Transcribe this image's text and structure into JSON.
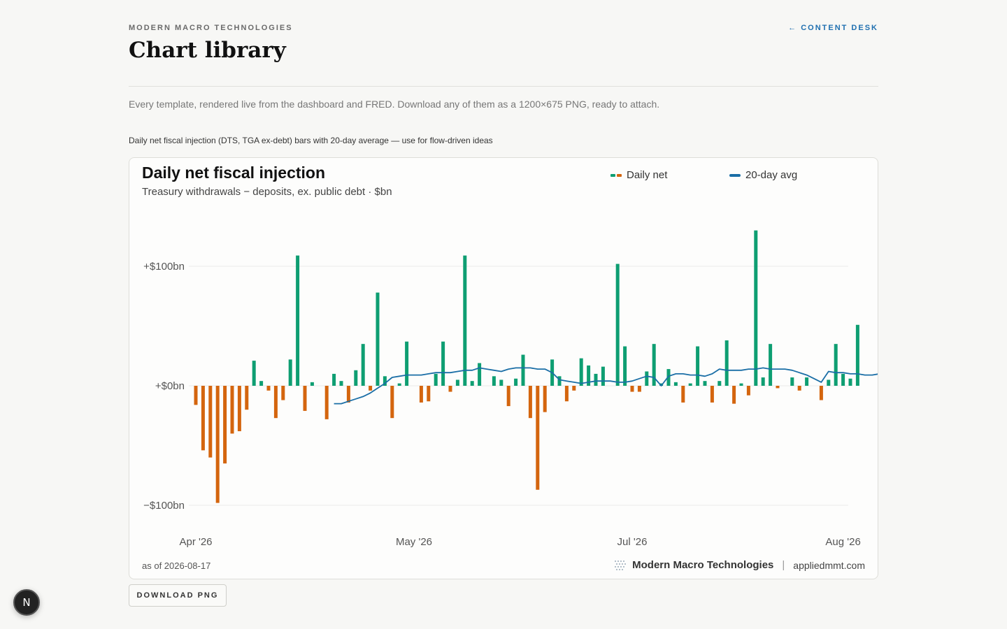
{
  "header": {
    "eyebrow": "MODERN MACRO TECHNOLOGIES",
    "title": "Chart library",
    "back_link": "← CONTENT DESK"
  },
  "intro": "Every template, rendered live from the dashboard and FRED. Download any of them as a 1200×675 PNG, ready to attach.",
  "chart_caption": "Daily net fiscal injection (DTS, TGA ex-debt) bars with 20-day average — use for flow-driven ideas",
  "card": {
    "as_of": "as of 2026-08-17",
    "brand_name": "Modern Macro Technologies",
    "brand_sep": "|",
    "brand_url": "appliedmmt.com"
  },
  "download_button": "DOWNLOAD PNG",
  "fab_label": "N",
  "colors": {
    "positive": "#0e9e72",
    "negative": "#d4650e",
    "avg_line": "#1a6ea6",
    "link": "#1f6fb0"
  },
  "chart_data": {
    "type": "bar",
    "title": "Daily net fiscal injection",
    "subtitle": "Treasury withdrawals − deposits, ex. public debt · $bn",
    "legend": [
      {
        "name": "Daily net",
        "style": "bars"
      },
      {
        "name": "20-day avg",
        "style": "line"
      }
    ],
    "y_ticks": [
      "+$100bn",
      "+$0bn",
      "−$100bn"
    ],
    "y_tick_values": [
      100,
      0,
      -100
    ],
    "ylim": [
      -105,
      130
    ],
    "x_ticks": [
      "Apr '26",
      "May '26",
      "Jul '26",
      "Aug '26"
    ],
    "x_tick_index": [
      0,
      30,
      60,
      89
    ],
    "grid": true,
    "series": [
      {
        "name": "Daily net",
        "values": [
          -16,
          -54,
          -60,
          -98,
          -65,
          -40,
          -38,
          -20,
          21,
          4,
          -4,
          -27,
          -12,
          22,
          109,
          -21,
          3,
          0,
          -28,
          10,
          4,
          -14,
          13,
          35,
          -4,
          78,
          8,
          -27,
          2,
          37,
          0,
          -14,
          -13,
          10,
          37,
          -5,
          5,
          109,
          4,
          19,
          0,
          8,
          5,
          -17,
          6,
          26,
          -27,
          -87,
          -22,
          22,
          8,
          -13,
          -4,
          23,
          17,
          10,
          16,
          0,
          102,
          33,
          -5,
          -5,
          12,
          35,
          2,
          14,
          3,
          -14,
          2,
          33,
          4,
          -14,
          4,
          38,
          -15,
          2,
          -8,
          130,
          7,
          35,
          -2,
          0,
          7,
          -4,
          7,
          0,
          -12,
          5,
          35,
          10,
          6,
          51
        ]
      },
      {
        "name": "20-day avg",
        "start_index": 19,
        "values": [
          -15,
          -15,
          -13,
          -11,
          -9,
          -6,
          -2,
          2,
          7,
          8,
          9,
          9,
          9,
          10,
          11,
          11,
          11,
          12,
          13,
          13,
          15,
          14,
          13,
          12,
          14,
          15,
          15,
          15,
          14,
          14,
          11,
          5,
          4,
          3,
          2,
          3,
          4,
          4,
          4,
          3,
          3,
          4,
          6,
          8,
          7,
          0,
          8,
          10,
          10,
          9,
          9,
          8,
          10,
          14,
          13,
          13,
          13,
          14,
          14,
          15,
          14,
          14,
          14,
          13,
          11,
          9,
          6,
          3,
          12,
          11,
          11,
          10,
          10,
          9,
          9,
          10,
          10,
          9,
          10,
          10,
          10,
          12,
          14
        ]
      }
    ]
  }
}
